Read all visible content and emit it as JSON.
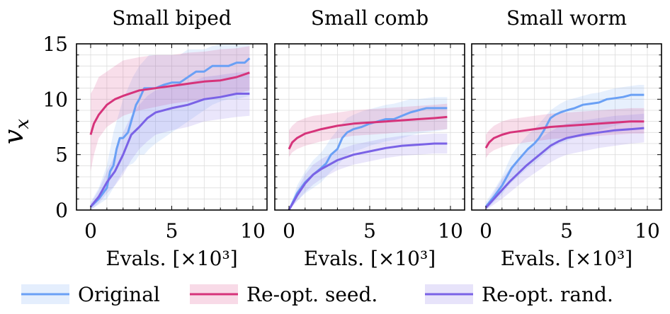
{
  "chart_data": [
    {
      "type": "line",
      "title": "Small biped",
      "ylabel": "v_x",
      "xlabel": "Evals. [×10³]",
      "xlim": [
        0,
        10
      ],
      "ylim": [
        0,
        15
      ],
      "xticks": [
        "0",
        "5",
        "10"
      ],
      "yticks": [
        "0",
        "5",
        "10",
        "15"
      ],
      "grid": true,
      "series": [
        {
          "name": "Original",
          "x": [
            0,
            0.5,
            1,
            1.2,
            1.4,
            1.6,
            1.8,
            2,
            2.3,
            2.6,
            2.8,
            3,
            3.3,
            3.6,
            4,
            4.5,
            5,
            5.5,
            6,
            6.5,
            7,
            7.5,
            8,
            8.5,
            9,
            9.5,
            9.8
          ],
          "y": [
            0.3,
            1,
            2,
            3.5,
            4,
            5.5,
            6.5,
            6.5,
            7,
            8.5,
            9.5,
            10,
            11,
            11,
            11,
            11.3,
            11.5,
            11.5,
            12,
            12.5,
            12.5,
            13,
            13,
            13,
            13.3,
            13.3,
            13.7
          ],
          "band_low": [
            0,
            0.5,
            1,
            1.5,
            2,
            2.5,
            3,
            3.5,
            4,
            4.2,
            4.5,
            5,
            5,
            5.5,
            6,
            6.5,
            7,
            7.5,
            8,
            8.5,
            9,
            9.5,
            9.8,
            10,
            10,
            10.2,
            10.3
          ],
          "band_high": [
            0.7,
            2,
            4,
            5.5,
            7,
            8,
            9,
            10,
            11,
            12,
            12.5,
            13,
            13.5,
            14,
            14,
            14,
            14,
            14,
            14.5,
            14.5,
            14.5,
            14.8,
            15,
            15,
            15,
            15,
            15
          ]
        },
        {
          "name": "Re-opt. seed.",
          "x": [
            0,
            0.2,
            0.5,
            1,
            1.5,
            2,
            3,
            4,
            5,
            6,
            7,
            8,
            9,
            9.8
          ],
          "y": [
            6.8,
            7.8,
            8.6,
            9.5,
            10,
            10.3,
            10.8,
            11,
            11.2,
            11.4,
            11.6,
            11.7,
            12,
            12.4
          ],
          "band_low": [
            3.5,
            5,
            6.5,
            7.5,
            8,
            8.5,
            9,
            9.3,
            9.6,
            9.8,
            10,
            10.3,
            10.5,
            10.8
          ],
          "band_high": [
            10.5,
            11,
            12,
            12.5,
            13,
            13.5,
            13.8,
            14,
            14,
            14.2,
            14.3,
            14.5,
            14.6,
            14.8
          ]
        },
        {
          "name": "Re-opt. rand.",
          "x": [
            0,
            0.5,
            1,
            1.5,
            2,
            2.5,
            3,
            3.5,
            4,
            5,
            6,
            7,
            8,
            9,
            9.8
          ],
          "y": [
            0.3,
            1.2,
            2.5,
            3.5,
            5,
            6.8,
            7.5,
            8.3,
            8.8,
            9.2,
            9.5,
            10,
            10.2,
            10.5,
            10.5
          ],
          "band_low": [
            0,
            0.6,
            1.5,
            2.2,
            3.2,
            4.5,
            5.5,
            6.2,
            6.8,
            7.2,
            7.5,
            8,
            8.2,
            8.4,
            8.5
          ],
          "band_high": [
            0.6,
            1.8,
            3.5,
            5,
            7,
            8.5,
            9.5,
            10.3,
            10.8,
            11.2,
            11.5,
            12,
            12.2,
            12.4,
            12.5
          ]
        }
      ]
    },
    {
      "type": "line",
      "title": "Small comb",
      "xlabel": "Evals. [×10³]",
      "xlim": [
        0,
        10
      ],
      "ylim": [
        0,
        15
      ],
      "xticks": [
        "0",
        "5",
        "10"
      ],
      "grid": true,
      "series": [
        {
          "name": "Original",
          "x": [
            0,
            0.5,
            1,
            1.5,
            2,
            2.3,
            2.6,
            3,
            3.3,
            3.6,
            4,
            4.5,
            5,
            5.5,
            6,
            6.5,
            7,
            7.5,
            8,
            8.5,
            9,
            9.5,
            9.8
          ],
          "y": [
            0,
            1.5,
            2.5,
            3.2,
            3.8,
            4.2,
            5,
            5.5,
            6.5,
            7,
            7.3,
            7.5,
            7.8,
            8,
            8.2,
            8.2,
            8.5,
            8.8,
            9,
            9.2,
            9.2,
            9.2,
            9.2
          ],
          "band_low": [
            0,
            0.8,
            1.5,
            2,
            2.5,
            3,
            3.5,
            4,
            4.5,
            5,
            5.3,
            5.5,
            5.8,
            6,
            6.2,
            6.3,
            6.5,
            6.7,
            6.9,
            7,
            7.1,
            7.2,
            7.3
          ],
          "band_high": [
            0,
            2.2,
            3.5,
            4.5,
            5.2,
            5.8,
            6.5,
            7.2,
            7.8,
            8.3,
            8.6,
            8.9,
            9.1,
            9.3,
            9.5,
            9.6,
            9.8,
            10,
            10,
            10.1,
            10.2,
            10.2,
            10.2
          ]
        },
        {
          "name": "Re-opt. seed.",
          "x": [
            0,
            0.2,
            0.5,
            1,
            1.5,
            2,
            3,
            4,
            5,
            6,
            7,
            8,
            9,
            9.8
          ],
          "y": [
            5.5,
            6.1,
            6.5,
            6.9,
            7.1,
            7.3,
            7.6,
            7.8,
            7.9,
            8,
            8.1,
            8.2,
            8.3,
            8.4
          ],
          "band_low": [
            4.8,
            5.2,
            5.5,
            5.8,
            6,
            6.2,
            6.5,
            6.7,
            6.8,
            6.9,
            7,
            7.1,
            7.2,
            7.3
          ],
          "band_high": [
            7.2,
            7.6,
            8,
            8.3,
            8.5,
            8.6,
            8.8,
            9,
            9.1,
            9.2,
            9.3,
            9.4,
            9.5,
            9.6
          ]
        },
        {
          "name": "Re-opt. rand.",
          "x": [
            0,
            0.5,
            1,
            1.5,
            2,
            2.5,
            3,
            4,
            5,
            6,
            7,
            8,
            9,
            9.8
          ],
          "y": [
            0,
            1.3,
            2.4,
            3.2,
            3.7,
            4.1,
            4.5,
            5,
            5.3,
            5.6,
            5.8,
            5.9,
            6,
            6
          ],
          "band_low": [
            0,
            0.8,
            1.6,
            2.3,
            2.8,
            3.2,
            3.6,
            4.1,
            4.4,
            4.7,
            4.9,
            5,
            5.1,
            5.1
          ],
          "band_high": [
            0,
            1.8,
            3.2,
            4.1,
            4.6,
            5,
            5.4,
            5.9,
            6.2,
            6.5,
            6.7,
            6.8,
            6.9,
            6.9
          ]
        }
      ]
    },
    {
      "type": "line",
      "title": "Small worm",
      "xlabel": "Evals. [×10³]",
      "xlim": [
        0,
        10
      ],
      "ylim": [
        0,
        15
      ],
      "xticks": [
        "0",
        "5",
        "10"
      ],
      "grid": true,
      "series": [
        {
          "name": "Original",
          "x": [
            0,
            0.5,
            1,
            1.3,
            1.6,
            2,
            2.3,
            2.6,
            3,
            3.3,
            3.6,
            4,
            4.3,
            4.6,
            5,
            5.5,
            6,
            6.5,
            7,
            7.5,
            8,
            8.5,
            9,
            9.5,
            9.8
          ],
          "y": [
            0.3,
            1.2,
            2.2,
            3,
            3.8,
            4.5,
            5,
            5.5,
            6,
            6.5,
            7.2,
            8.3,
            8.6,
            8.8,
            9,
            9.2,
            9.5,
            9.6,
            9.7,
            10,
            10.1,
            10.2,
            10.4,
            10.4,
            10.4
          ],
          "band_low": [
            0,
            0.7,
            1.4,
            2,
            2.5,
            3,
            3.4,
            3.8,
            4.2,
            4.6,
            5,
            5.5,
            5.8,
            6,
            6.2,
            6.5,
            6.8,
            7,
            7.2,
            7.4,
            7.6,
            7.8,
            8,
            8.1,
            8.2
          ],
          "band_high": [
            0.7,
            1.8,
            3,
            4,
            5,
            5.8,
            6.3,
            6.8,
            7.3,
            7.8,
            8.3,
            9,
            9.3,
            9.6,
            9.9,
            10.1,
            10.3,
            10.5,
            10.6,
            10.8,
            11,
            11.1,
            11.2,
            11.3,
            11.3
          ]
        },
        {
          "name": "Re-opt. seed.",
          "x": [
            0,
            0.2,
            0.5,
            1,
            1.5,
            2,
            3,
            4,
            5,
            6,
            7,
            8,
            9,
            9.8
          ],
          "y": [
            5.6,
            6.1,
            6.5,
            6.8,
            7,
            7.1,
            7.3,
            7.5,
            7.6,
            7.7,
            7.8,
            7.9,
            8,
            8
          ],
          "band_low": [
            4.7,
            5.1,
            5.4,
            5.7,
            5.9,
            6,
            6.2,
            6.4,
            6.5,
            6.6,
            6.7,
            6.8,
            6.9,
            6.9
          ],
          "band_high": [
            6.8,
            7.2,
            7.6,
            8,
            8.2,
            8.3,
            8.5,
            8.7,
            8.8,
            8.9,
            9,
            9.1,
            9.2,
            9.2
          ]
        },
        {
          "name": "Re-opt. rand.",
          "x": [
            0,
            0.5,
            1,
            1.5,
            2,
            2.5,
            3,
            3.5,
            4,
            4.5,
            5,
            6,
            7,
            8,
            9,
            9.8
          ],
          "y": [
            0.2,
            1,
            1.8,
            2.6,
            3.3,
            4,
            4.6,
            5.2,
            5.8,
            6.2,
            6.5,
            6.8,
            7,
            7.2,
            7.3,
            7.4
          ],
          "band_low": [
            0,
            0.5,
            1,
            1.6,
            2.2,
            2.8,
            3.3,
            3.8,
            4.3,
            4.7,
            5,
            5.3,
            5.6,
            5.8,
            6,
            6.1
          ],
          "band_high": [
            0.4,
            1.6,
            2.8,
            3.8,
            4.6,
            5.3,
            6,
            6.6,
            7.1,
            7.5,
            7.8,
            8.1,
            8.3,
            8.5,
            8.6,
            8.7
          ]
        }
      ]
    }
  ],
  "legend": {
    "position": "bottom",
    "items": [
      {
        "label": "Original",
        "color": "#6aa0f5"
      },
      {
        "label": "Re-opt. seed.",
        "color": "#d6337a"
      },
      {
        "label": "Re-opt. rand.",
        "color": "#7a62e6"
      }
    ]
  },
  "colors": {
    "Original": "#6aa0f5",
    "Re-opt. seed.": "#d6337a",
    "Re-opt. rand.": "#7a62e6"
  },
  "ylabel_main": "v",
  "ylabel_sub": "x"
}
